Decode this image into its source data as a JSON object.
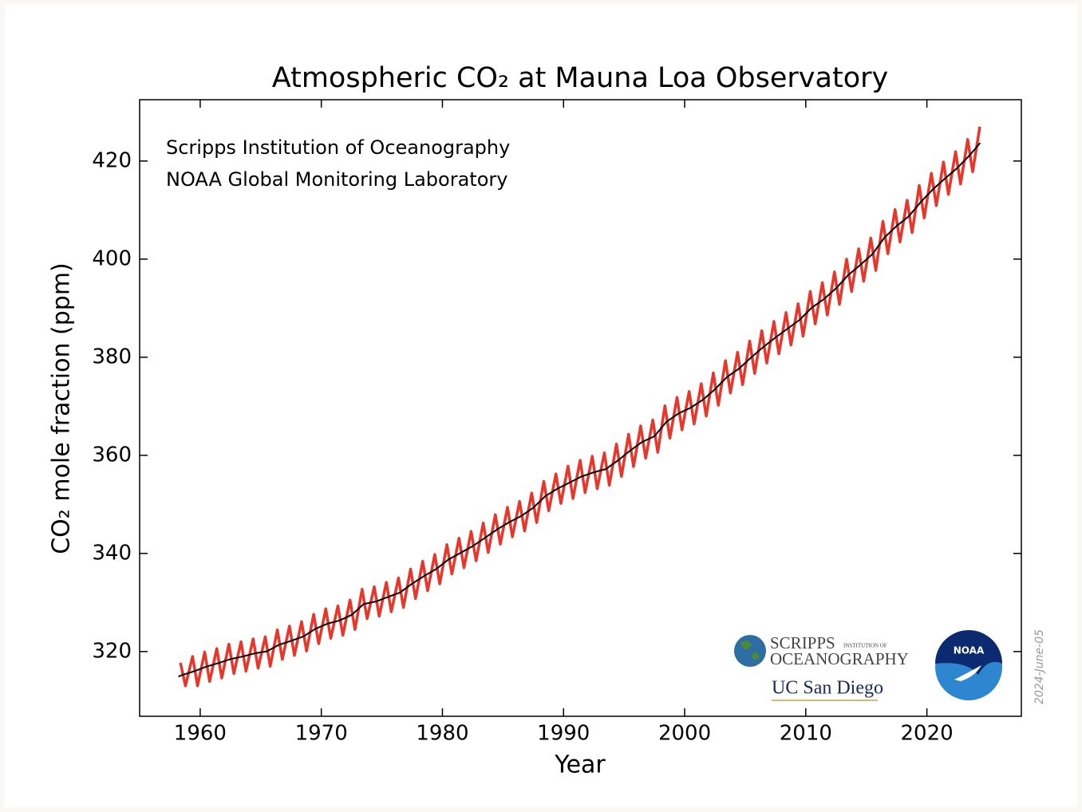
{
  "chart_data": {
    "type": "line",
    "title": "Atmospheric CO₂ at Mauna Loa Observatory",
    "annotations": [
      "Scripps Institution of Oceanography",
      "NOAA Global Monitoring Laboratory"
    ],
    "x_label": "Year",
    "y_label": "CO₂ mole fraction (ppm)",
    "date_stamp": "2024-June-05",
    "logos": [
      "SCRIPPS",
      "INSTITUTION OF",
      "OCEANOGRAPHY",
      "UC San Diego",
      "NOAA"
    ],
    "xlim": [
      1955,
      2027.8
    ],
    "ylim": [
      306.8,
      432.5
    ],
    "xticks": [
      1960,
      1970,
      1980,
      1990,
      2000,
      2010,
      2020
    ],
    "yticks": [
      320,
      340,
      360,
      380,
      400,
      420
    ],
    "series": [
      {
        "color": "#e8362a",
        "x": [
          1958.37,
          1958.78,
          1959.37,
          1959.78,
          1960.37,
          1960.78,
          1961.37,
          1961.78,
          1962.37,
          1962.78,
          1963.37,
          1963.78,
          1964.37,
          1964.78,
          1965.37,
          1965.78,
          1966.37,
          1966.78,
          1967.37,
          1967.78,
          1968.37,
          1968.78,
          1969.37,
          1969.78,
          1970.37,
          1970.78,
          1971.37,
          1971.78,
          1972.37,
          1972.78,
          1973.37,
          1973.78,
          1974.37,
          1974.78,
          1975.37,
          1975.78,
          1976.37,
          1976.78,
          1977.37,
          1977.78,
          1978.37,
          1978.78,
          1979.37,
          1979.78,
          1980.37,
          1980.78,
          1981.37,
          1981.78,
          1982.37,
          1982.78,
          1983.37,
          1983.78,
          1984.37,
          1984.78,
          1985.37,
          1985.78,
          1986.37,
          1986.78,
          1987.37,
          1987.78,
          1988.37,
          1988.78,
          1989.37,
          1989.78,
          1990.37,
          1990.78,
          1991.37,
          1991.78,
          1992.37,
          1992.78,
          1993.37,
          1993.78,
          1994.37,
          1994.78,
          1995.37,
          1995.78,
          1996.37,
          1996.78,
          1997.37,
          1997.78,
          1998.37,
          1998.78,
          1999.37,
          1999.78,
          2000.37,
          2000.78,
          2001.37,
          2001.78,
          2002.37,
          2002.78,
          2003.37,
          2003.78,
          2004.37,
          2004.78,
          2005.37,
          2005.78,
          2006.37,
          2006.78,
          2007.37,
          2007.78,
          2008.37,
          2008.78,
          2009.37,
          2009.78,
          2010.37,
          2010.78,
          2011.37,
          2011.78,
          2012.37,
          2012.78,
          2013.37,
          2013.78,
          2014.37,
          2014.78,
          2015.37,
          2015.78,
          2016.37,
          2016.78,
          2017.37,
          2017.78,
          2018.37,
          2018.78,
          2019.37,
          2019.78,
          2020.37,
          2020.78,
          2021.37,
          2021.78,
          2022.37,
          2022.78,
          2023.37,
          2023.78,
          2024.37
        ],
        "values": [
          317.7,
          313.0,
          319.0,
          313.0,
          319.9,
          313.9,
          320.6,
          314.6,
          321.5,
          315.5,
          322.0,
          316.0,
          322.6,
          316.6,
          323.0,
          317.0,
          324.4,
          318.4,
          325.2,
          319.2,
          326.1,
          320.1,
          327.6,
          321.6,
          328.7,
          322.7,
          329.3,
          323.3,
          330.5,
          324.5,
          332.7,
          326.7,
          333.2,
          327.2,
          334.1,
          328.1,
          335.0,
          329.0,
          336.8,
          330.8,
          338.4,
          332.4,
          339.8,
          333.8,
          341.8,
          335.8,
          343.1,
          337.1,
          344.5,
          338.5,
          346.2,
          340.2,
          347.9,
          341.9,
          349.4,
          343.4,
          350.6,
          344.6,
          352.3,
          346.3,
          354.7,
          348.7,
          356.2,
          350.2,
          357.8,
          351.2,
          359.0,
          352.4,
          359.8,
          353.2,
          360.5,
          353.9,
          362.3,
          355.7,
          364.3,
          357.7,
          366.0,
          359.4,
          367.2,
          360.6,
          370.1,
          363.5,
          371.8,
          365.2,
          373.0,
          366.4,
          374.6,
          368.0,
          376.8,
          370.2,
          379.3,
          372.7,
          381.0,
          374.4,
          383.3,
          376.7,
          385.4,
          378.8,
          387.3,
          380.7,
          389.1,
          382.5,
          390.9,
          384.3,
          393.4,
          386.8,
          395.2,
          388.6,
          397.4,
          390.8,
          400.0,
          393.4,
          402.1,
          395.5,
          404.3,
          397.7,
          407.7,
          401.1,
          410.1,
          403.5,
          412.0,
          405.4,
          415.0,
          408.4,
          417.5,
          410.9,
          419.8,
          413.2,
          421.9,
          415.3,
          424.4,
          417.8,
          427.0
        ]
      },
      {
        "color": "#000000",
        "x": [
          1958.2,
          1958.5,
          1959.5,
          1960.5,
          1961.5,
          1962.5,
          1963.5,
          1964.5,
          1965.5,
          1966.5,
          1967.5,
          1968.5,
          1969.5,
          1970.5,
          1971.5,
          1972.5,
          1973.5,
          1974.5,
          1975.5,
          1976.5,
          1977.5,
          1978.5,
          1979.5,
          1980.5,
          1981.5,
          1982.5,
          1983.5,
          1984.5,
          1985.5,
          1986.5,
          1987.5,
          1988.5,
          1989.5,
          1990.5,
          1991.5,
          1992.5,
          1993.5,
          1994.5,
          1995.5,
          1996.5,
          1997.5,
          1998.5,
          1999.5,
          2000.5,
          2001.5,
          2002.5,
          2003.5,
          2004.5,
          2005.5,
          2006.5,
          2007.5,
          2008.5,
          2009.5,
          2010.5,
          2011.5,
          2012.5,
          2013.5,
          2014.5,
          2015.5,
          2016.5,
          2017.5,
          2018.5,
          2019.5,
          2020.5,
          2021.5,
          2022.5,
          2023.5,
          2024.4
        ],
        "values": [
          314.9,
          315.2,
          315.98,
          316.91,
          317.64,
          318.45,
          318.99,
          319.62,
          320.04,
          321.37,
          322.18,
          323.05,
          324.62,
          325.68,
          326.32,
          327.46,
          329.68,
          330.19,
          331.12,
          332.03,
          333.84,
          335.41,
          336.84,
          338.76,
          340.12,
          341.48,
          343.15,
          344.87,
          346.35,
          347.61,
          349.31,
          351.69,
          353.2,
          354.45,
          355.7,
          356.54,
          357.21,
          358.96,
          360.97,
          362.74,
          363.88,
          366.84,
          368.54,
          369.71,
          371.32,
          373.45,
          375.98,
          377.7,
          379.98,
          382.09,
          384.02,
          385.83,
          387.64,
          390.1,
          391.85,
          394.06,
          396.74,
          398.81,
          401.01,
          404.41,
          406.76,
          408.72,
          411.66,
          414.24,
          416.45,
          418.56,
          421.08,
          423.7
        ]
      }
    ]
  }
}
